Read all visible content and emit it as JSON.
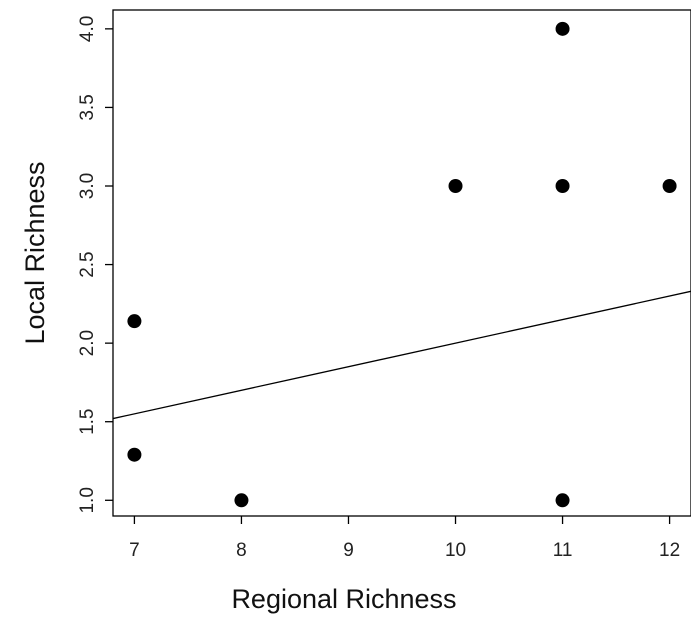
{
  "chart_data": {
    "type": "scatter",
    "title": "",
    "xlabel": "Regional Richness",
    "ylabel": "Local Richness",
    "xlim": [
      6.8,
      12.2
    ],
    "ylim": [
      0.9,
      4.12
    ],
    "x_ticks": [
      7,
      8,
      9,
      10,
      11,
      12
    ],
    "x_tick_labels": [
      "7",
      "8",
      "9",
      "10",
      "11",
      "12"
    ],
    "y_ticks": [
      1.0,
      1.5,
      2.0,
      2.5,
      3.0,
      3.5,
      4.0
    ],
    "y_tick_labels": [
      "1.0",
      "1.5",
      "2.0",
      "2.5",
      "3.0",
      "3.5",
      "4.0"
    ],
    "grid": false,
    "legend": "none",
    "series": [
      {
        "points": [
          {
            "x": 7,
            "y": 2.14
          },
          {
            "x": 7,
            "y": 1.29
          },
          {
            "x": 8,
            "y": 1.0
          },
          {
            "x": 10,
            "y": 3.0
          },
          {
            "x": 11,
            "y": 4.0
          },
          {
            "x": 11,
            "y": 3.0
          },
          {
            "x": 11,
            "y": 1.0
          },
          {
            "x": 12,
            "y": 3.0
          }
        ]
      }
    ],
    "fit_line": {
      "x0": 6.8,
      "y0": 1.52,
      "x1": 12.2,
      "y1": 2.33
    },
    "colors": {
      "points": "#000000",
      "line": "#000000",
      "axis": "#000000"
    }
  }
}
